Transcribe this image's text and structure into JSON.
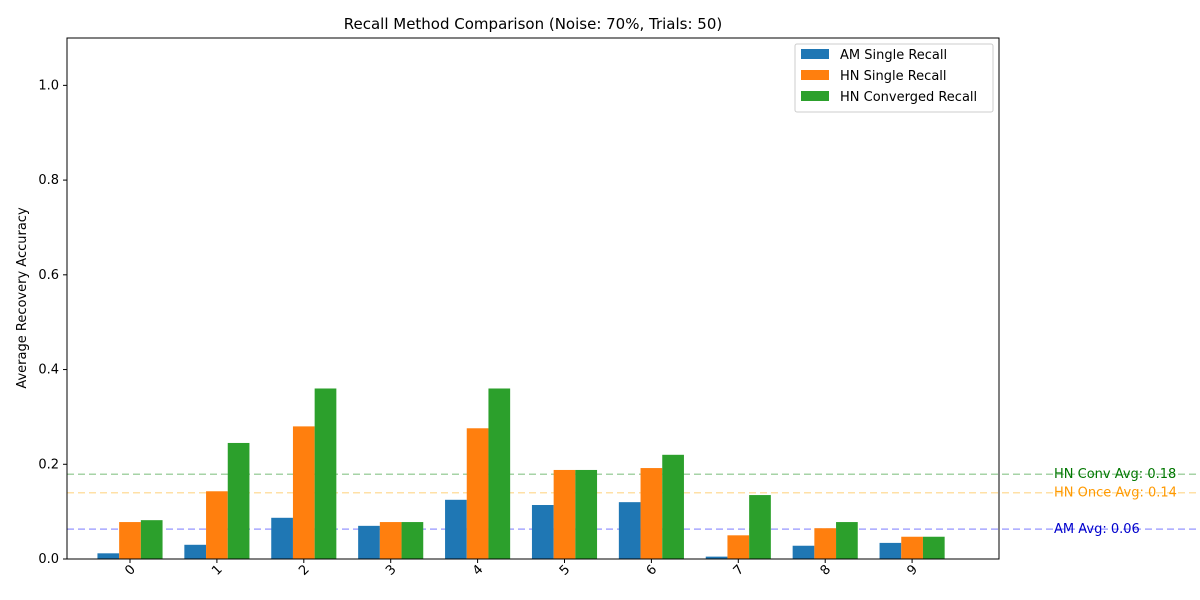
{
  "chart_data": {
    "type": "bar",
    "title": "Recall Method Comparison (Noise: 70%, Trials: 50)",
    "xlabel": "",
    "ylabel": "Average Recovery Accuracy",
    "ylim": [
      0,
      1.1
    ],
    "yticks": [
      0.0,
      0.2,
      0.4,
      0.6,
      0.8,
      1.0
    ],
    "ytick_labels": [
      "0.0",
      "0.2",
      "0.4",
      "0.6",
      "0.8",
      "1.0"
    ],
    "categories": [
      "0",
      "1",
      "2",
      "3",
      "4",
      "5",
      "6",
      "7",
      "8",
      "9"
    ],
    "series": [
      {
        "name": "AM Single Recall",
        "color": "#1f77b4",
        "values": [
          0.012,
          0.03,
          0.087,
          0.07,
          0.125,
          0.114,
          0.12,
          0.005,
          0.028,
          0.034
        ]
      },
      {
        "name": "HN Single Recall",
        "color": "#ff7f0e",
        "values": [
          0.078,
          0.143,
          0.28,
          0.078,
          0.276,
          0.188,
          0.192,
          0.05,
          0.065,
          0.047
        ]
      },
      {
        "name": "HN Converged Recall",
        "color": "#2ca02c",
        "values": [
          0.082,
          0.245,
          0.36,
          0.078,
          0.36,
          0.188,
          0.22,
          0.135,
          0.078,
          0.047
        ]
      }
    ],
    "legend_position": "top-right",
    "reference_lines": [
      {
        "label": "AM Avg: 0.06",
        "value": 0.063,
        "color": "#0000ff",
        "text_color": "#0000cc"
      },
      {
        "label": "HN Once Avg: 0.14",
        "value": 0.14,
        "color": "#ffa500",
        "text_color": "#ff9900"
      },
      {
        "label": "HN Conv Avg: 0.18",
        "value": 0.179,
        "color": "#008000",
        "text_color": "#007700"
      }
    ]
  }
}
